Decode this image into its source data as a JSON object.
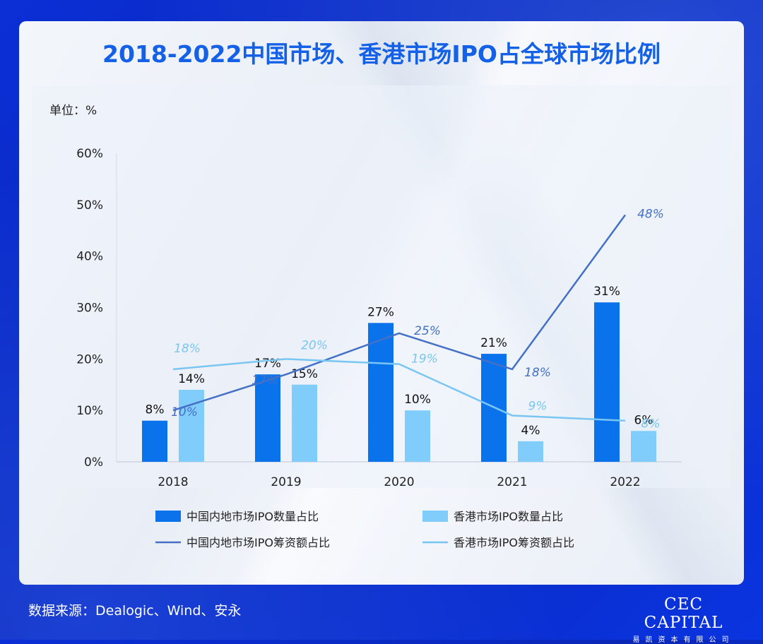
{
  "title": "2018-2022中国市场、香港市场IPO占全球市场比例",
  "source": "数据来源：Dealogic、Wind、安永",
  "logo": {
    "main": "CEC CAPITAL",
    "sub": "易凯资本有限公司"
  },
  "colors": {
    "mainland_bar": "#0a73eb",
    "hk_bar": "#80ccfb",
    "mainland_line": "#4470c6",
    "hk_line": "#79c6f3",
    "title": "#1460e6",
    "axis_text": "#222222"
  },
  "chart_data": {
    "type": "bar",
    "unit_label": "单位：%",
    "categories": [
      "2018",
      "2019",
      "2020",
      "2021",
      "2022"
    ],
    "ylim": [
      0,
      60
    ],
    "yticks": [
      "0%",
      "10%",
      "20%",
      "30%",
      "40%",
      "50%",
      "60%"
    ],
    "grid": false,
    "legend_position": "bottom",
    "series": [
      {
        "name": "中国内地市场IPO数量占比",
        "type": "bar",
        "values": [
          8,
          17,
          27,
          21,
          31
        ]
      },
      {
        "name": "香港市场IPO数量占比",
        "type": "bar",
        "values": [
          14,
          15,
          10,
          4,
          6
        ]
      },
      {
        "name": "中国内地市场IPO筹资额占比",
        "type": "line",
        "values": [
          10,
          17,
          25,
          18,
          48
        ]
      },
      {
        "name": "香港市场IPO筹资额占比",
        "type": "line",
        "values": [
          18,
          20,
          19,
          9,
          8
        ]
      }
    ]
  }
}
